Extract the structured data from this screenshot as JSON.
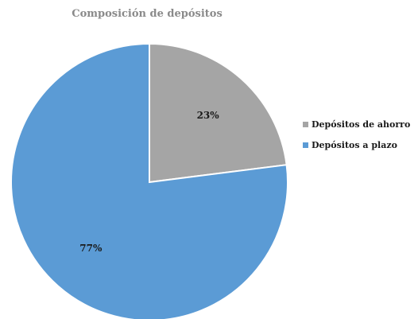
{
  "chart_data": {
    "type": "pie",
    "title": "Composición de depósitos",
    "slices": [
      {
        "name": "Depósitos de ahorro",
        "value": 23,
        "label": "23%",
        "color": "#a5a5a5"
      },
      {
        "name": "Depósitos a plazo",
        "value": 77,
        "label": "77%",
        "color": "#5b9bd5"
      }
    ],
    "start_angle_deg": 0,
    "direction": "clockwise",
    "legend_position": "right"
  }
}
